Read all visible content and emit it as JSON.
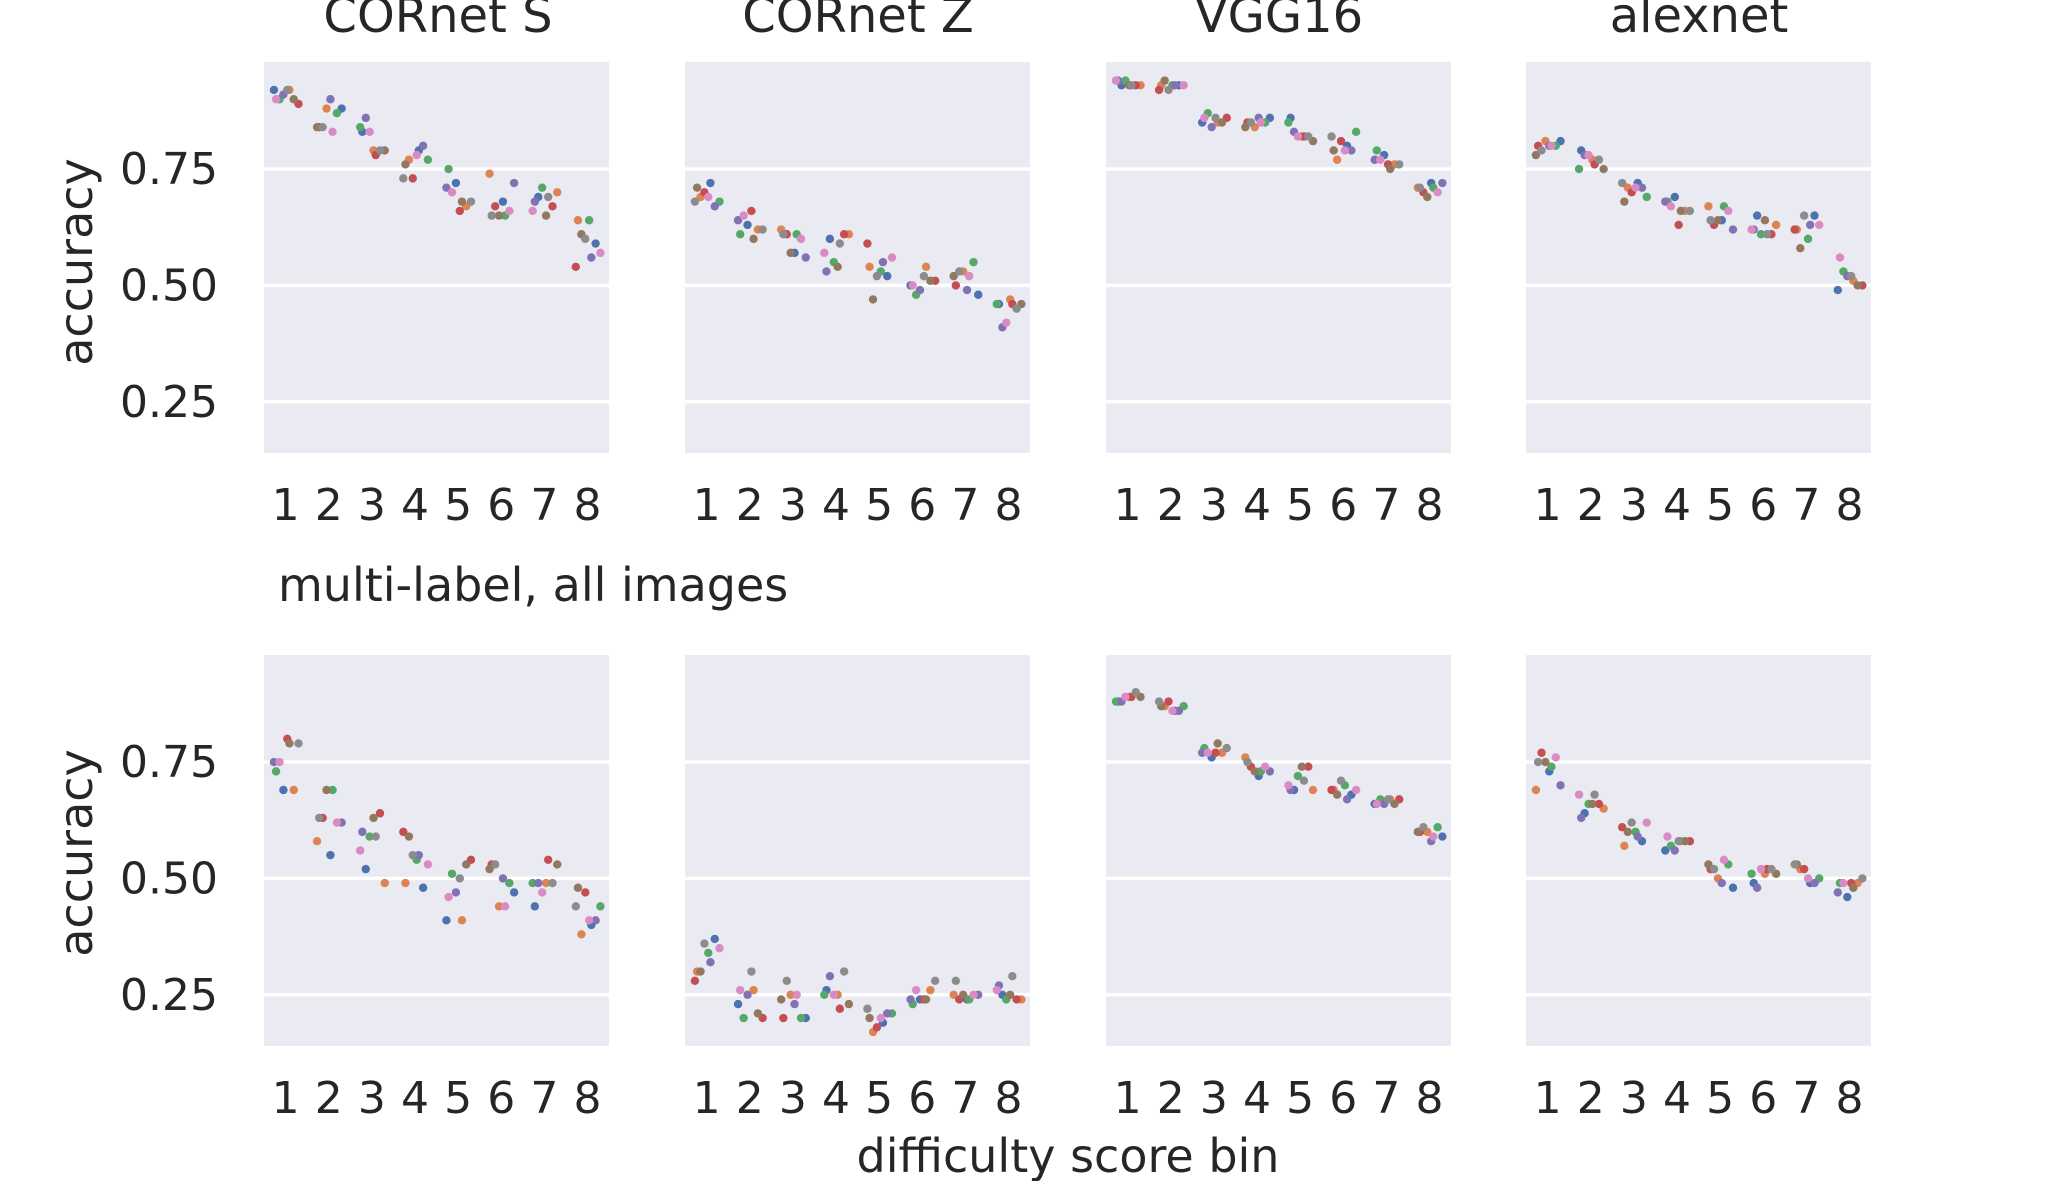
{
  "figure": {
    "column_titles": [
      "CORnet S",
      "CORnet Z",
      "VGG16",
      "alexnet"
    ],
    "row_titles": [
      "",
      "multi-label, all images"
    ],
    "ylabel": "accuracy",
    "xlabel": "difficulty score bin"
  },
  "palette": [
    "#4c72b0",
    "#dd8452",
    "#55a868",
    "#c44e52",
    "#8172b3",
    "#937860",
    "#da8bc3",
    "#8c8c8c"
  ],
  "chart_data": {
    "type": "scatter",
    "style": "strip",
    "x_categories": [
      "1",
      "2",
      "3",
      "4",
      "5",
      "6",
      "7",
      "8"
    ],
    "y_ticks": [
      0.25,
      0.5,
      0.75
    ],
    "y_tick_labels": [
      "0.25",
      "0.50",
      "0.75"
    ],
    "ylim": [
      0.14,
      0.98
    ],
    "grid": true,
    "legend": "none",
    "panels": [
      {
        "row": 0,
        "col": 0,
        "model": "CORnet S",
        "points": [
          [
            0.92,
            0.92,
            0.9,
            0.89,
            0.91,
            0.9,
            0.9,
            0.92
          ],
          [
            0.88,
            0.88,
            0.87,
            0.84,
            0.9,
            0.84,
            0.83,
            0.84
          ],
          [
            0.83,
            0.79,
            0.84,
            0.78,
            0.86,
            0.79,
            0.83,
            0.79
          ],
          [
            0.79,
            0.77,
            0.77,
            0.73,
            0.8,
            0.76,
            0.78,
            0.73
          ],
          [
            0.72,
            0.67,
            0.75,
            0.66,
            0.71,
            0.68,
            0.7,
            0.68
          ],
          [
            0.68,
            0.74,
            0.65,
            0.67,
            0.72,
            0.65,
            0.66,
            0.65
          ],
          [
            0.69,
            0.7,
            0.71,
            0.67,
            0.68,
            0.65,
            0.66,
            0.69
          ],
          [
            0.59,
            0.64,
            0.64,
            0.54,
            0.56,
            0.61,
            0.57,
            0.6
          ]
        ]
      },
      {
        "row": 0,
        "col": 1,
        "model": "CORnet Z",
        "points": [
          [
            0.72,
            0.69,
            0.68,
            0.7,
            0.67,
            0.71,
            0.69,
            0.68
          ],
          [
            0.63,
            0.62,
            0.61,
            0.66,
            0.64,
            0.6,
            0.65,
            0.62
          ],
          [
            0.57,
            0.62,
            0.61,
            0.61,
            0.56,
            0.57,
            0.6,
            0.61
          ],
          [
            0.6,
            0.61,
            0.55,
            0.61,
            0.53,
            0.54,
            0.57,
            0.59
          ],
          [
            0.52,
            0.54,
            0.53,
            0.59,
            0.55,
            0.47,
            0.56,
            0.52
          ],
          [
            0.5,
            0.54,
            0.48,
            0.51,
            0.49,
            0.51,
            0.5,
            0.52
          ],
          [
            0.48,
            0.53,
            0.55,
            0.5,
            0.49,
            0.52,
            0.52,
            0.53
          ],
          [
            0.46,
            0.47,
            0.46,
            0.46,
            0.41,
            0.46,
            0.42,
            0.45
          ]
        ]
      },
      {
        "row": 0,
        "col": 2,
        "model": "VGG16",
        "points": [
          [
            0.93,
            0.93,
            0.94,
            0.93,
            0.94,
            0.93,
            0.94,
            0.93
          ],
          [
            0.93,
            0.93,
            0.93,
            0.92,
            0.93,
            0.94,
            0.93,
            0.92
          ],
          [
            0.85,
            0.85,
            0.87,
            0.86,
            0.84,
            0.85,
            0.86,
            0.86
          ],
          [
            0.86,
            0.84,
            0.85,
            0.85,
            0.86,
            0.84,
            0.85,
            0.85
          ],
          [
            0.86,
            0.82,
            0.85,
            0.82,
            0.83,
            0.81,
            0.82,
            0.82
          ],
          [
            0.8,
            0.77,
            0.83,
            0.81,
            0.79,
            0.79,
            0.79,
            0.82
          ],
          [
            0.78,
            0.76,
            0.79,
            0.76,
            0.77,
            0.75,
            0.77,
            0.76
          ],
          [
            0.72,
            0.71,
            0.71,
            0.7,
            0.72,
            0.69,
            0.7,
            0.71
          ]
        ]
      },
      {
        "row": 0,
        "col": 3,
        "model": "alexnet",
        "points": [
          [
            0.81,
            0.81,
            0.8,
            0.8,
            0.8,
            0.78,
            0.8,
            0.79
          ],
          [
            0.79,
            0.77,
            0.75,
            0.76,
            0.78,
            0.75,
            0.78,
            0.77
          ],
          [
            0.72,
            0.71,
            0.69,
            0.7,
            0.71,
            0.68,
            0.71,
            0.72
          ],
          [
            0.69,
            0.66,
            0.68,
            0.63,
            0.68,
            0.66,
            0.67,
            0.66
          ],
          [
            0.64,
            0.67,
            0.67,
            0.63,
            0.62,
            0.64,
            0.66,
            0.64
          ],
          [
            0.65,
            0.63,
            0.61,
            0.61,
            0.62,
            0.64,
            0.62,
            0.61
          ],
          [
            0.65,
            0.62,
            0.6,
            0.62,
            0.63,
            0.58,
            0.63,
            0.65
          ],
          [
            0.49,
            0.51,
            0.53,
            0.5,
            0.52,
            0.5,
            0.56,
            0.52
          ]
        ]
      },
      {
        "row": 1,
        "col": 0,
        "model": "CORnet S",
        "points": [
          [
            0.69,
            0.69,
            0.73,
            0.8,
            0.75,
            0.79,
            0.75,
            0.79
          ],
          [
            0.55,
            0.58,
            0.69,
            0.63,
            0.62,
            0.69,
            0.62,
            0.63
          ],
          [
            0.52,
            0.49,
            0.59,
            0.64,
            0.6,
            0.63,
            0.56,
            0.59
          ],
          [
            0.48,
            0.49,
            0.54,
            0.6,
            0.55,
            0.59,
            0.53,
            0.55
          ],
          [
            0.41,
            0.41,
            0.51,
            0.54,
            0.47,
            0.53,
            0.46,
            0.5
          ],
          [
            0.47,
            0.44,
            0.49,
            0.53,
            0.5,
            0.52,
            0.44,
            0.53
          ],
          [
            0.44,
            0.49,
            0.49,
            0.54,
            0.49,
            0.53,
            0.47,
            0.49
          ],
          [
            0.4,
            0.38,
            0.44,
            0.47,
            0.41,
            0.48,
            0.41,
            0.44
          ]
        ]
      },
      {
        "row": 1,
        "col": 1,
        "model": "CORnet Z",
        "points": [
          [
            0.37,
            0.3,
            0.34,
            0.28,
            0.32,
            0.3,
            0.35,
            0.36
          ],
          [
            0.23,
            0.26,
            0.2,
            0.2,
            0.25,
            0.21,
            0.26,
            0.3
          ],
          [
            0.2,
            0.25,
            0.2,
            0.2,
            0.23,
            0.24,
            0.25,
            0.28
          ],
          [
            0.26,
            0.25,
            0.25,
            0.22,
            0.29,
            0.23,
            0.25,
            0.3
          ],
          [
            0.19,
            0.17,
            0.21,
            0.18,
            0.21,
            0.2,
            0.2,
            0.22
          ],
          [
            0.24,
            0.26,
            0.23,
            0.24,
            0.24,
            0.24,
            0.26,
            0.28
          ],
          [
            0.24,
            0.25,
            0.24,
            0.24,
            0.25,
            0.25,
            0.25,
            0.28
          ],
          [
            0.25,
            0.24,
            0.24,
            0.24,
            0.27,
            0.25,
            0.26,
            0.29
          ]
        ]
      },
      {
        "row": 1,
        "col": 2,
        "model": "VGG16",
        "points": [
          [
            0.88,
            0.89,
            0.88,
            0.89,
            0.88,
            0.89,
            0.89,
            0.9
          ],
          [
            0.86,
            0.87,
            0.87,
            0.88,
            0.86,
            0.87,
            0.86,
            0.88
          ],
          [
            0.76,
            0.77,
            0.78,
            0.77,
            0.77,
            0.79,
            0.77,
            0.78
          ],
          [
            0.72,
            0.76,
            0.73,
            0.74,
            0.73,
            0.73,
            0.74,
            0.75
          ],
          [
            0.69,
            0.69,
            0.72,
            0.74,
            0.69,
            0.74,
            0.7,
            0.71
          ],
          [
            0.68,
            0.69,
            0.7,
            0.69,
            0.67,
            0.68,
            0.69,
            0.71
          ],
          [
            0.66,
            0.67,
            0.67,
            0.67,
            0.66,
            0.66,
            0.66,
            0.67
          ],
          [
            0.59,
            0.6,
            0.61,
            0.6,
            0.58,
            0.6,
            0.59,
            0.61
          ]
        ]
      },
      {
        "row": 1,
        "col": 3,
        "model": "alexnet",
        "points": [
          [
            0.73,
            0.69,
            0.74,
            0.77,
            0.7,
            0.75,
            0.76,
            0.75
          ],
          [
            0.64,
            0.65,
            0.66,
            0.66,
            0.63,
            0.66,
            0.68,
            0.68
          ],
          [
            0.58,
            0.57,
            0.6,
            0.61,
            0.59,
            0.6,
            0.62,
            0.62
          ],
          [
            0.56,
            0.58,
            0.57,
            0.58,
            0.56,
            0.58,
            0.59,
            0.58
          ],
          [
            0.48,
            0.5,
            0.53,
            0.52,
            0.49,
            0.53,
            0.54,
            0.52
          ],
          [
            0.49,
            0.51,
            0.51,
            0.52,
            0.48,
            0.51,
            0.52,
            0.52
          ],
          [
            0.49,
            0.52,
            0.5,
            0.52,
            0.49,
            0.53,
            0.5,
            0.53
          ],
          [
            0.46,
            0.49,
            0.49,
            0.49,
            0.47,
            0.48,
            0.49,
            0.5
          ]
        ]
      }
    ]
  }
}
